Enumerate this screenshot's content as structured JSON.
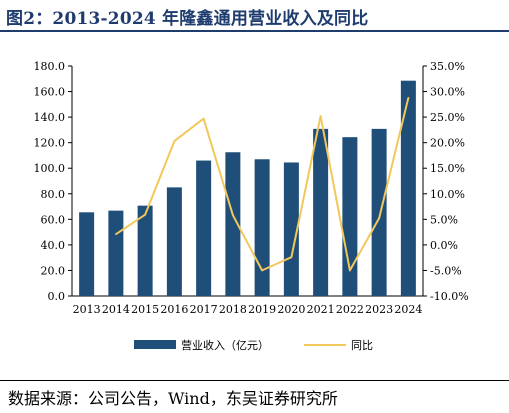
{
  "title": "图2：2013-2024 年隆鑫通用营业收入及同比",
  "source": "数据来源：公司公告，Wind，东吴证券研究所",
  "colors": {
    "bar": "#1f4e79",
    "line": "#f2c85b",
    "title": "#1f3c6e"
  },
  "chart_data": {
    "type": "bar",
    "categories": [
      "2013",
      "2014",
      "2015",
      "2016",
      "2017",
      "2018",
      "2019",
      "2020",
      "2021",
      "2022",
      "2023",
      "2024"
    ],
    "left_axis": {
      "min": 0,
      "max": 180,
      "step": 20,
      "ticks": [
        "0.0",
        "20.0",
        "40.0",
        "60.0",
        "80.0",
        "100.0",
        "120.0",
        "140.0",
        "160.0",
        "180.0"
      ]
    },
    "right_axis": {
      "min": -10,
      "max": 35,
      "step": 5,
      "ticks": [
        "-10.0%",
        "-5.0%",
        "0.0%",
        "5.0%",
        "10.0%",
        "15.0%",
        "20.0%",
        "25.0%",
        "30.0%",
        "35.0%"
      ]
    },
    "series": [
      {
        "name": "营业收入（亿元）",
        "type": "bar",
        "axis": "left",
        "values": [
          65.5,
          66.8,
          70.7,
          85.0,
          106.0,
          112.5,
          107.0,
          104.5,
          130.8,
          124.3,
          130.8,
          168.5
        ]
      },
      {
        "name": "同比",
        "type": "line",
        "axis": "right",
        "values": [
          null,
          2.1,
          5.9,
          20.3,
          24.7,
          5.8,
          -5.0,
          -2.4,
          25.2,
          -5.0,
          5.2,
          28.8
        ]
      }
    ],
    "legend_position": "bottom",
    "grid": false
  }
}
